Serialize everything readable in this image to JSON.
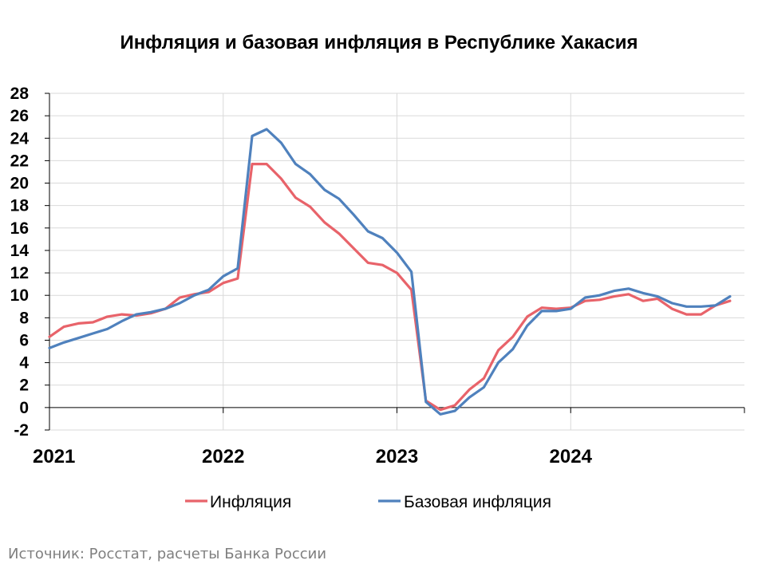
{
  "chart_data": {
    "type": "line",
    "title": "Инфляция и базовая инфляция в Республике Хакасия",
    "xlabel": "",
    "ylabel": "",
    "ylim": [
      -2,
      28
    ],
    "yticks": [
      "28",
      "26",
      "24",
      "22",
      "20",
      "18",
      "16",
      "14",
      "12",
      "10",
      "8",
      "6",
      "4",
      "2",
      "0",
      "-2"
    ],
    "x_tick_labels": [
      "2021",
      "2022",
      "2023",
      "2024"
    ],
    "x": [
      "2021-01",
      "2021-02",
      "2021-03",
      "2021-04",
      "2021-05",
      "2021-06",
      "2021-07",
      "2021-08",
      "2021-09",
      "2021-10",
      "2021-11",
      "2021-12",
      "2022-01",
      "2022-02",
      "2022-03",
      "2022-04",
      "2022-05",
      "2022-06",
      "2022-07",
      "2022-08",
      "2022-09",
      "2022-10",
      "2022-11",
      "2022-12",
      "2023-01",
      "2023-02",
      "2023-03",
      "2023-04",
      "2023-05",
      "2023-06",
      "2023-07",
      "2023-08",
      "2023-09",
      "2023-10",
      "2023-11",
      "2023-12",
      "2024-01",
      "2024-02",
      "2024-03",
      "2024-04",
      "2024-05",
      "2024-06",
      "2024-07",
      "2024-08",
      "2024-09",
      "2024-10",
      "2024-11",
      "2024-12"
    ],
    "series": [
      {
        "name": "Инфляция",
        "color": "#e8636a",
        "values": [
          6.3,
          7.2,
          7.5,
          7.6,
          8.1,
          8.3,
          8.2,
          8.4,
          8.8,
          9.8,
          10.1,
          10.3,
          11.1,
          11.5,
          21.7,
          21.7,
          20.4,
          18.7,
          17.9,
          16.5,
          15.5,
          14.2,
          12.9,
          12.7,
          12.0,
          10.5,
          0.6,
          -0.2,
          0.2,
          1.6,
          2.6,
          5.1,
          6.3,
          8.1,
          8.9,
          8.8,
          8.9,
          9.5,
          9.6,
          9.9,
          10.1,
          9.5,
          9.7,
          8.8,
          8.3,
          8.3,
          9.1,
          9.5
        ]
      },
      {
        "name": "Базовая инфляция",
        "color": "#4f81bd",
        "values": [
          5.3,
          5.8,
          6.2,
          6.6,
          7.0,
          7.7,
          8.3,
          8.5,
          8.8,
          9.3,
          10.0,
          10.5,
          11.7,
          12.4,
          24.2,
          24.8,
          23.6,
          21.7,
          20.8,
          19.4,
          18.6,
          17.2,
          15.7,
          15.1,
          13.8,
          12.1,
          0.5,
          -0.6,
          -0.3,
          0.9,
          1.8,
          4.0,
          5.2,
          7.3,
          8.6,
          8.6,
          8.8,
          9.8,
          10.0,
          10.4,
          10.6,
          10.2,
          9.9,
          9.3,
          9.0,
          9.0,
          9.1,
          9.9
        ]
      }
    ],
    "grid": true,
    "legend_position": "bottom"
  },
  "source_note": "Источник: Росстат, расчеты Банка России"
}
